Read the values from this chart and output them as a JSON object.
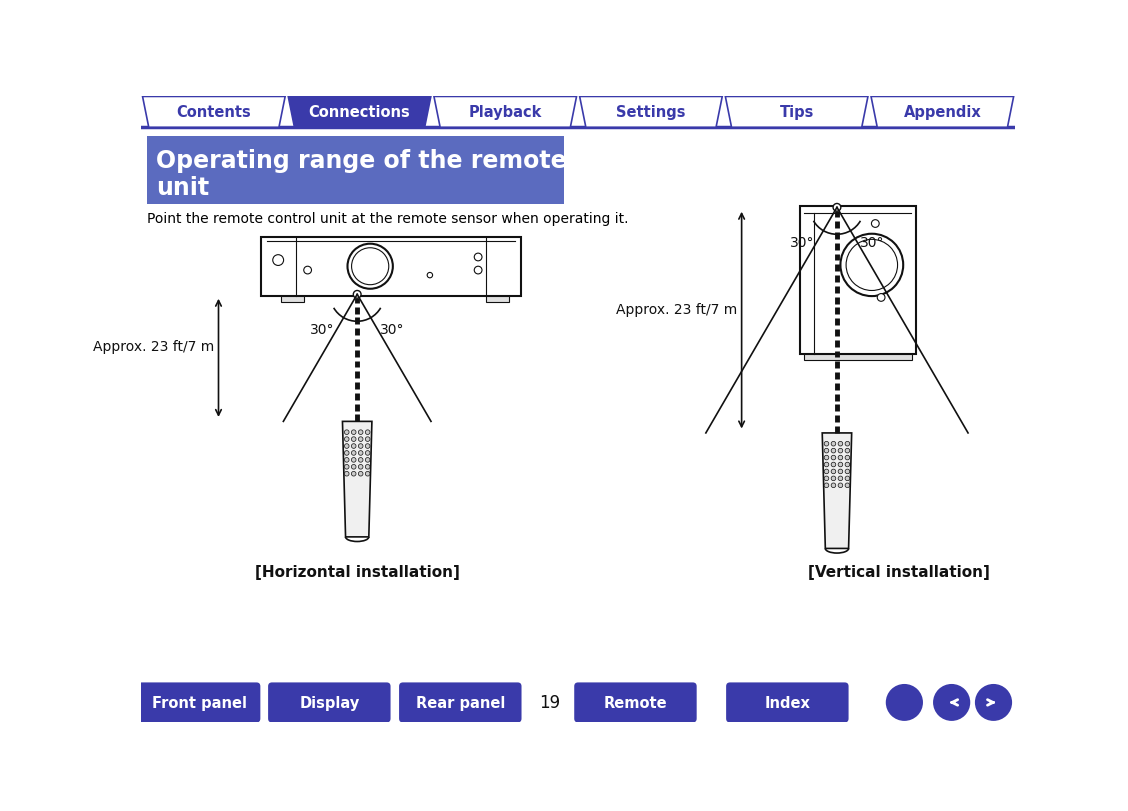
{
  "bg_color": "#ffffff",
  "tab_color_active": "#3a3aaa",
  "tab_color_inactive": "#ffffff",
  "tab_border_color": "#3a3aaa",
  "tab_labels": [
    "Contents",
    "Connections",
    "Playback",
    "Settings",
    "Tips",
    "Appendix"
  ],
  "tab_active_index": 1,
  "title_bg_color": "#5b6bbf",
  "title_text_line1": "Operating range of the remote control",
  "title_text_line2": "unit",
  "title_text_color": "#ffffff",
  "subtitle_text": "Point the remote control unit at the remote sensor when operating it.",
  "subtitle_color": "#000000",
  "approx_text": "Approx. 23 ft/7 m",
  "angle_text": "30°",
  "horiz_label": "[Horizontal installation]",
  "vert_label": "[Vertical installation]",
  "bottom_buttons": [
    "Front panel",
    "Display",
    "Rear panel",
    "Remote",
    "Index"
  ],
  "bottom_btn_color": "#3a3aaa",
  "bottom_btn_text_color": "#ffffff",
  "page_number": "19",
  "device_color": "#111111"
}
